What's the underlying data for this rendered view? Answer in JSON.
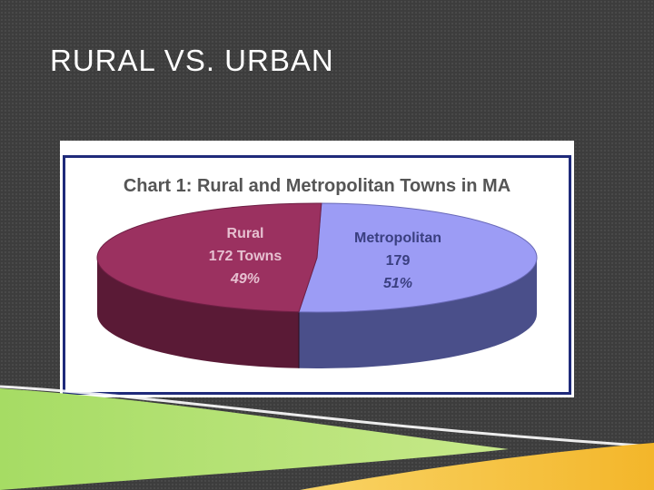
{
  "slide": {
    "title": "RURAL VS. URBAN"
  },
  "chart_data": {
    "type": "pie",
    "title": "Chart 1: Rural and Metropolitan Towns in MA",
    "slices": [
      {
        "label": "Rural",
        "count_text": "172 Towns",
        "value": 172,
        "percent_text": "49%",
        "color": "#9b3160",
        "side_color": "#5a1a36"
      },
      {
        "label": "Metropolitan",
        "count_text": "179",
        "value": 179,
        "percent_text": "51%",
        "color": "#9c9cf5",
        "side_color": "#4a4f8a"
      }
    ],
    "three_d": true
  },
  "colors": {
    "background": "#3d3d3d",
    "frame_border": "#1f2a7a",
    "accent_green": "#8fd14f",
    "accent_yellow": "#f6c343"
  }
}
